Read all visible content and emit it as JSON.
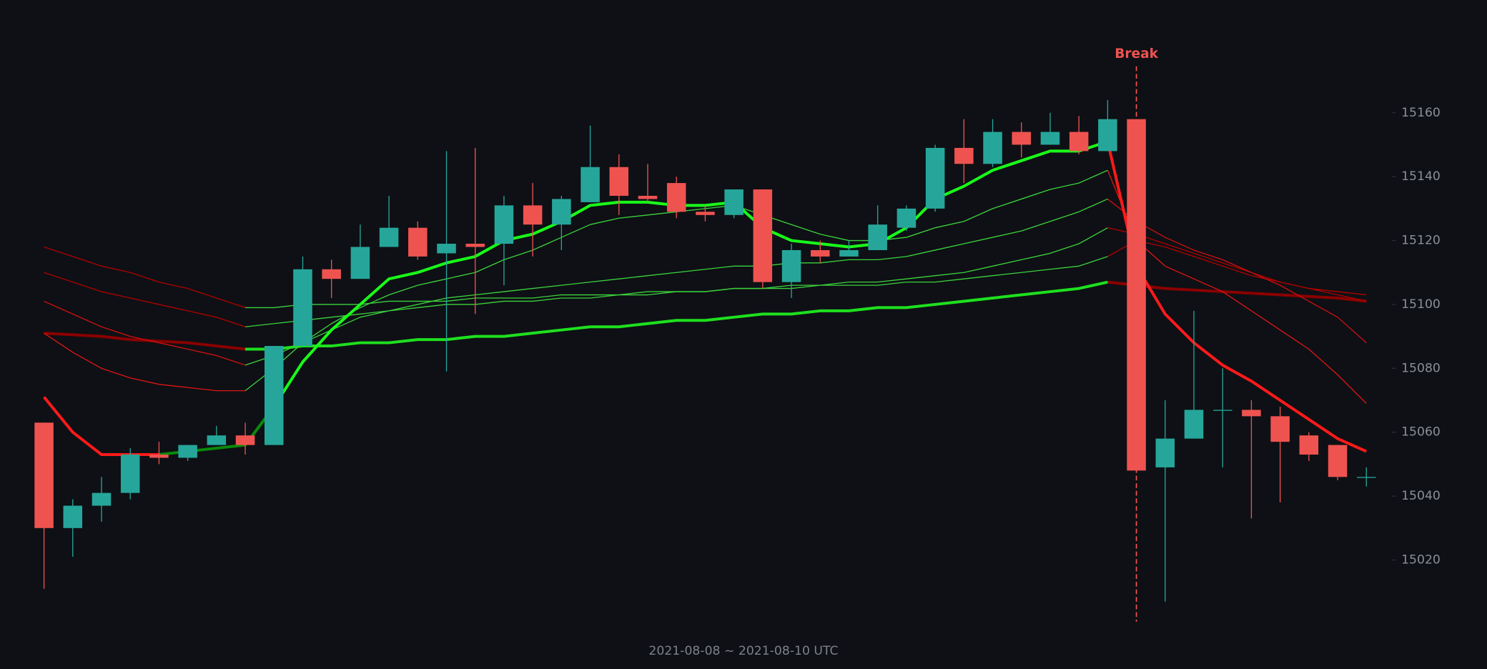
{
  "chart_data": {
    "type": "candlestick",
    "x_label": "2021-08-08 ~ 2021-08-10 UTC",
    "ylim": [
      15000,
      15195
    ],
    "yticks": [
      15020,
      15040,
      15060,
      15080,
      15100,
      15120,
      15140,
      15160
    ],
    "up_color": "#26a69a",
    "down_color": "#ef5350",
    "open": [
      15063,
      15030,
      15037,
      15041,
      15053,
      15052,
      15056,
      15059,
      15056,
      15087,
      15111,
      15108,
      15118,
      15124,
      15116,
      15119,
      15119,
      15131,
      15125,
      15132,
      15143,
      15134,
      15138,
      15129,
      15128,
      15136,
      15107,
      15117,
      15115,
      15117,
      15124,
      15130,
      15149,
      15144,
      15154,
      15150,
      15154,
      15148,
      15158,
      15049,
      15058,
      15067,
      15067,
      15065,
      15059,
      15056,
      15046
    ],
    "high": [
      15063,
      15039,
      15046,
      15055,
      15057,
      15056,
      15062,
      15063,
      15087,
      15115,
      15114,
      15125,
      15134,
      15126,
      15148,
      15149,
      15134,
      15138,
      15134,
      15156,
      15147,
      15144,
      15140,
      15131,
      15136,
      15136,
      15119,
      15120,
      15120,
      15131,
      15131,
      15150,
      15158,
      15158,
      15157,
      15160,
      15159,
      15164,
      15158,
      15070,
      15098,
      15080,
      15070,
      15068,
      15060,
      15056,
      15049
    ],
    "low": [
      15011,
      15021,
      15032,
      15039,
      15050,
      15051,
      15056,
      15053,
      15056,
      15087,
      15102,
      15108,
      15118,
      15114,
      15079,
      15097,
      15106,
      15115,
      15117,
      15132,
      15128,
      15132,
      15127,
      15126,
      15127,
      15105,
      15102,
      15113,
      15115,
      15117,
      15123,
      15129,
      15138,
      15143,
      15146,
      15150,
      15147,
      15148,
      15048,
      15007,
      15058,
      15049,
      15033,
      15038,
      15051,
      15045,
      15043
    ],
    "close": [
      15030,
      15037,
      15041,
      15053,
      15052,
      15056,
      15059,
      15056,
      15087,
      15111,
      15108,
      15118,
      15124,
      15115,
      15119,
      15118,
      15131,
      15125,
      15133,
      15143,
      15134,
      15133,
      15129,
      15128,
      15136,
      15107,
      15117,
      15115,
      15117,
      15125,
      15130,
      15149,
      15144,
      15154,
      15150,
      15154,
      15148,
      15158,
      15048,
      15058,
      15067,
      15067,
      15065,
      15057,
      15053,
      15046,
      15046
    ],
    "series": [
      {
        "color": "#8b0000",
        "width": 3,
        "values": [
          15091,
          15090.5,
          15090,
          15089,
          15088.5,
          15088,
          15087,
          15086,
          null,
          null,
          null,
          null,
          null,
          null,
          null,
          null,
          null,
          null,
          null,
          null,
          null,
          null,
          null,
          null,
          null,
          null,
          null,
          null,
          null,
          null,
          null,
          null,
          null,
          null,
          null,
          null,
          null,
          15107,
          15106,
          15105,
          15104.5,
          15104,
          15103.5,
          15103,
          15102.5,
          15102,
          15101
        ]
      },
      {
        "color": "#b00000",
        "width": 1,
        "values": [
          15118,
          15115,
          15112,
          15110,
          15107,
          15105,
          15102,
          15099,
          null,
          null,
          null,
          null,
          null,
          null,
          null,
          null,
          null,
          null,
          null,
          null,
          null,
          null,
          null,
          null,
          null,
          null,
          null,
          null,
          null,
          null,
          null,
          null,
          null,
          null,
          null,
          null,
          null,
          15115,
          15120,
          15118,
          15115,
          15112,
          15109,
          15107,
          15105,
          15104,
          15103
        ]
      },
      {
        "color": "#b00000",
        "width": 1,
        "values": [
          15110,
          15107,
          15104,
          15102,
          15100,
          15098,
          15096,
          15093,
          null,
          null,
          null,
          null,
          null,
          null,
          null,
          null,
          null,
          null,
          null,
          null,
          null,
          null,
          null,
          null,
          null,
          null,
          null,
          null,
          null,
          null,
          null,
          null,
          null,
          null,
          null,
          null,
          null,
          15124,
          15122,
          15119,
          15116,
          15113,
          15110,
          15107,
          15105,
          15103,
          15101
        ]
      },
      {
        "color": "#d01010",
        "width": 1,
        "values": [
          15101,
          15097,
          15093,
          15090,
          15088,
          15086,
          15084,
          15081,
          null,
          null,
          null,
          null,
          null,
          null,
          null,
          null,
          null,
          null,
          null,
          null,
          null,
          null,
          null,
          null,
          null,
          null,
          null,
          null,
          null,
          null,
          null,
          null,
          null,
          null,
          null,
          null,
          null,
          15133,
          15126,
          15121,
          15117,
          15114,
          15110,
          15106,
          15101,
          15096,
          15088
        ]
      },
      {
        "color": "#e01515",
        "width": 1,
        "values": [
          15091,
          15085,
          15080,
          15077,
          15075,
          15074,
          15073,
          15073,
          null,
          null,
          null,
          null,
          null,
          null,
          null,
          null,
          null,
          null,
          null,
          null,
          null,
          null,
          null,
          null,
          null,
          null,
          null,
          null,
          null,
          null,
          null,
          null,
          null,
          null,
          null,
          null,
          null,
          15142,
          15120,
          15112,
          15108,
          15104,
          15098,
          15092,
          15086,
          15078,
          15069
        ]
      },
      {
        "color": "#ff1a1a",
        "width": 3,
        "values": [
          15071,
          15060,
          15053,
          15053,
          15053,
          null,
          null,
          null,
          null,
          null,
          null,
          null,
          null,
          null,
          null,
          null,
          null,
          null,
          null,
          null,
          null,
          null,
          null,
          null,
          null,
          null,
          null,
          null,
          null,
          null,
          null,
          null,
          null,
          null,
          null,
          null,
          null,
          15151,
          15112,
          15097,
          15088,
          15081,
          15076,
          15070,
          15064,
          15058,
          15054
        ]
      },
      {
        "color": "#1ee01e",
        "width": 3,
        "values": [
          null,
          null,
          null,
          null,
          null,
          null,
          null,
          15086,
          15086,
          15087,
          15087,
          15088,
          15088,
          15089,
          15089,
          15090,
          15090,
          15091,
          15092,
          15093,
          15093,
          15094,
          15095,
          15095,
          15096,
          15097,
          15097,
          15098,
          15098,
          15099,
          15099,
          15100,
          15101,
          15102,
          15103,
          15104,
          15105,
          15107,
          null,
          null,
          null,
          null,
          null,
          null,
          null,
          null,
          null
        ]
      },
      {
        "color": "#3cd23c",
        "width": 1,
        "values": [
          null,
          null,
          null,
          null,
          null,
          null,
          null,
          15099,
          15099,
          15100,
          15100,
          15100,
          15101,
          15101,
          15101,
          15102,
          15102,
          15102,
          15103,
          15103,
          15103,
          15104,
          15104,
          15104,
          15105,
          15105,
          15105,
          15106,
          15106,
          15106,
          15107,
          15107,
          15108,
          15109,
          15110,
          15111,
          15112,
          15115,
          null,
          null,
          null,
          null,
          null,
          null,
          null,
          null,
          null
        ]
      },
      {
        "color": "#3cd23c",
        "width": 1,
        "values": [
          null,
          null,
          null,
          null,
          null,
          null,
          null,
          15093,
          15094,
          15095,
          15096,
          15097,
          15098,
          15099,
          15100,
          15100,
          15101,
          15101,
          15102,
          15102,
          15103,
          15103,
          15104,
          15104,
          15105,
          15105,
          15106,
          15106,
          15107,
          15107,
          15108,
          15109,
          15110,
          15112,
          15114,
          15116,
          15119,
          15124,
          null,
          null,
          null,
          null,
          null,
          null,
          null,
          null,
          null
        ]
      },
      {
        "color": "#3cd23c",
        "width": 1,
        "values": [
          null,
          null,
          null,
          null,
          null,
          null,
          null,
          15081,
          15084,
          15088,
          15092,
          15096,
          15098,
          15100,
          15102,
          15103,
          15104,
          15105,
          15106,
          15107,
          15108,
          15109,
          15110,
          15111,
          15112,
          15112,
          15113,
          15113,
          15114,
          15114,
          15115,
          15117,
          15119,
          15121,
          15123,
          15126,
          15129,
          15133,
          null,
          null,
          null,
          null,
          null,
          null,
          null,
          null,
          null
        ]
      },
      {
        "color": "#3cd23c",
        "width": 1,
        "values": [
          null,
          null,
          null,
          null,
          null,
          null,
          null,
          15073,
          15080,
          15088,
          15094,
          15099,
          15103,
          15106,
          15108,
          15110,
          15114,
          15117,
          15121,
          15125,
          15127,
          15128,
          15129,
          15130,
          15131,
          15128,
          15125,
          15122,
          15120,
          15120,
          15121,
          15124,
          15126,
          15130,
          15133,
          15136,
          15138,
          15142,
          null,
          null,
          null,
          null,
          null,
          null,
          null,
          null,
          null
        ]
      },
      {
        "color": "#0a8a0a",
        "width": 3,
        "values": [
          null,
          null,
          null,
          null,
          15053,
          15054,
          15055,
          15056,
          15068,
          null,
          null,
          null,
          null,
          null,
          null,
          null,
          null,
          null,
          null,
          null,
          null,
          null,
          null,
          null,
          null,
          null,
          null,
          null,
          null,
          null,
          null,
          null,
          null,
          null,
          null,
          null,
          null,
          null,
          null,
          null,
          null,
          null,
          null,
          null,
          null,
          null,
          null
        ]
      },
      {
        "color": "#19ff19",
        "width": 3,
        "values": [
          null,
          null,
          null,
          null,
          null,
          null,
          null,
          null,
          15068,
          15082,
          15092,
          15100,
          15108,
          15110,
          15113,
          15115,
          15120,
          15122,
          15126,
          15131,
          15132,
          15132,
          15131,
          15131,
          15132,
          15124,
          15120,
          15119,
          15118,
          15119,
          15124,
          15133,
          15137,
          15142,
          15145,
          15148,
          15148,
          15151,
          null,
          null,
          null,
          null,
          null,
          null,
          null,
          null,
          null
        ]
      }
    ],
    "annotations": [
      {
        "text": "Break",
        "index": 38,
        "color": "#ef5350"
      }
    ]
  }
}
